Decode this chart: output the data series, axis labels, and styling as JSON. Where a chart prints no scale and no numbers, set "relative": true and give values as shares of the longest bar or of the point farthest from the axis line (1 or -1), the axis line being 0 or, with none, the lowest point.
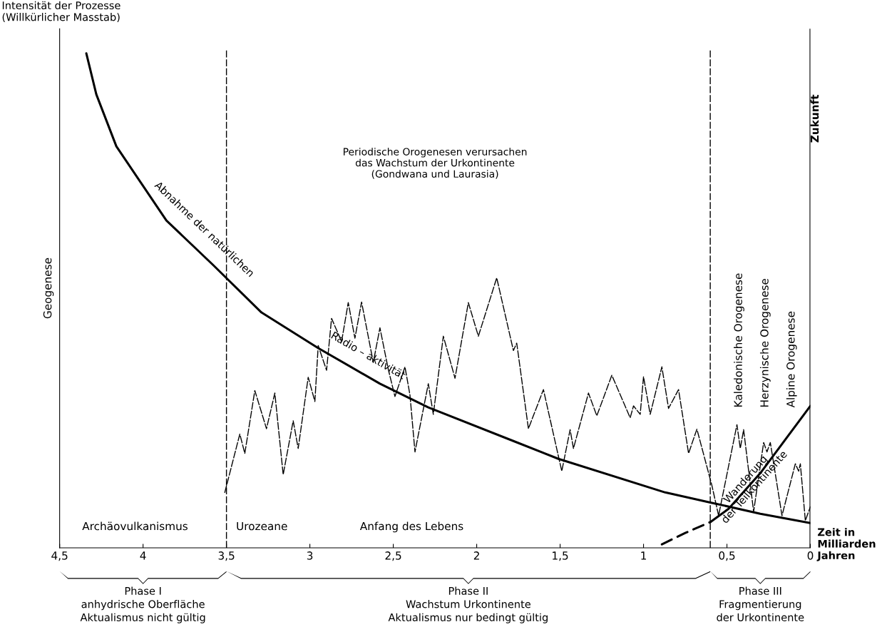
{
  "chart_data": {
    "type": "line",
    "relative": true,
    "title": "Intensität der Prozesse\n(Willkürlicher Masstab)",
    "ylabel": "Geogenese",
    "xlabel": "Zeit in\nMilliarden\nJahren",
    "xlim": [
      4.5,
      0
    ],
    "xticks": [
      {
        "value": 4.5,
        "label": "4,5"
      },
      4,
      {
        "value": 3.5,
        "label": "3,5"
      },
      3,
      {
        "value": 2.5,
        "label": "2,5"
      },
      2,
      {
        "value": 1.5,
        "label": "1,5"
      },
      1,
      {
        "value": 0.5,
        "label": "0,5"
      },
      0
    ],
    "grid": false,
    "marker": "none",
    "series": [
      {
        "color": "#000000",
        "line_style": "solid",
        "x": [
          4.34,
          4.28,
          4.16,
          3.86,
          3.58,
          3.29,
          2.95,
          2.58,
          2.29,
          1.78,
          1.51,
          0.87,
          0.59,
          0.3,
          0.0
        ],
        "values": [
          1.0,
          0.917,
          0.812,
          0.662,
          0.572,
          0.476,
          0.404,
          0.332,
          0.284,
          0.216,
          0.18,
          0.112,
          0.091,
          0.069,
          0.05
        ]
      },
      {
        "color": "#000000",
        "line_style": "dashed",
        "x": [
          3.51,
          3.42,
          3.39,
          3.33,
          3.26,
          3.21,
          3.16,
          3.1,
          3.07,
          3.01,
          2.97,
          2.95,
          2.9,
          2.87,
          2.81,
          2.77,
          2.73,
          2.69,
          2.62,
          2.58,
          2.53,
          2.49,
          2.43,
          2.4,
          2.37,
          2.29,
          2.26,
          2.2,
          2.13,
          2.05,
          1.99,
          1.88,
          1.78,
          1.76,
          1.69,
          1.6,
          1.49,
          1.44,
          1.42,
          1.33,
          1.28,
          1.19,
          1.08,
          1.06,
          1.02,
          1.0,
          0.96,
          0.89,
          0.85,
          0.79,
          0.73,
          0.68,
          0.59,
          0.55,
          0.44,
          0.42,
          0.4,
          0.34,
          0.28,
          0.26,
          0.24,
          0.17,
          0.09,
          0.07,
          0.06,
          0.03,
          0.0
        ],
        "values": [
          0.112,
          0.23,
          0.191,
          0.318,
          0.241,
          0.313,
          0.148,
          0.257,
          0.201,
          0.345,
          0.296,
          0.409,
          0.359,
          0.464,
          0.417,
          0.496,
          0.424,
          0.497,
          0.375,
          0.445,
          0.361,
          0.306,
          0.366,
          0.309,
          0.194,
          0.332,
          0.27,
          0.428,
          0.343,
          0.496,
          0.428,
          0.546,
          0.399,
          0.414,
          0.241,
          0.32,
          0.155,
          0.239,
          0.201,
          0.313,
          0.267,
          0.349,
          0.263,
          0.287,
          0.27,
          0.346,
          0.27,
          0.366,
          0.282,
          0.32,
          0.191,
          0.24,
          0.126,
          0.065,
          0.249,
          0.201,
          0.239,
          0.073,
          0.213,
          0.194,
          0.213,
          0.065,
          0.17,
          0.155,
          0.17,
          0.055,
          0.083
        ]
      },
      {
        "color": "#000000",
        "line_style": "dashed",
        "x": [
          0.89,
          0.75,
          0.6
        ],
        "values": [
          0.007,
          0.03,
          0.052
        ]
      },
      {
        "color": "#000000",
        "line_style": "solid",
        "x": [
          0.6,
          0.49,
          0.3,
          0.0
        ],
        "values": [
          0.052,
          0.079,
          0.151,
          0.287
        ]
      }
    ],
    "ref_lines": [
      {
        "axis": "x",
        "value": 3.5,
        "line_style": "dashed"
      },
      {
        "axis": "x",
        "value": 0.6,
        "line_style": "dashed"
      },
      {
        "axis": "x",
        "value": 0,
        "line_style": "solid",
        "label": "Zukunft"
      }
    ],
    "annotations": [
      {
        "text": "Abnahme der natürlichen",
        "x": 3.7,
        "y": 0.62
      },
      {
        "text": "Radio – aktivität",
        "x": 2.7,
        "y": 0.36
      },
      "Periodische Orogenesen verursachen\ndas Wachstum der Urkontinente\n(Gondwana und Laurasia)",
      "Kaledonische Orogenese",
      "Herzynische Orogenese",
      "Alpine Orogenese",
      {
        "text": "Wanderung\nder Teilkontinente",
        "x": 0.36,
        "y": 0.13
      },
      "Archäovulkanismus",
      "Urozeane",
      "Anfang des Lebens",
      "Phase I\nanhydrische Oberfläche\nAktualismus nicht gültig",
      "Phase II\nWachstum Urkontinente\nAktualismus nur bedingt gültig",
      "Phase III\nFragmentierung\nder Urkontinente"
    ]
  }
}
